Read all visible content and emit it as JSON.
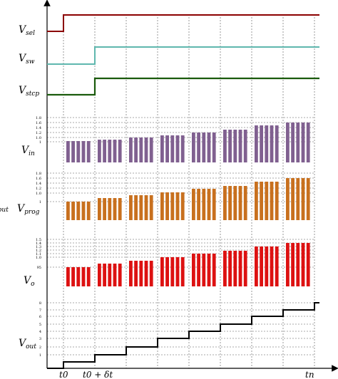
{
  "colors": {
    "v_sel": "#8b0000",
    "v_sw": "#5fb7ae",
    "v_stcp": "#1a5a0c",
    "v_in": "#806090",
    "v_prog": "#c8701e",
    "v_o": "#dd1111",
    "v_out": "#000000",
    "grid": "#555555"
  },
  "signals": {
    "v_sel": {
      "base": "V",
      "sub": "sel"
    },
    "v_sw": {
      "base": "V",
      "sub": "sw"
    },
    "v_stcp": {
      "base": "V",
      "sub": "stcp"
    },
    "v_in": {
      "base": "V",
      "sub": "in"
    },
    "v_prog": {
      "base": "V",
      "sub": "prog"
    },
    "v_o": {
      "base": "V",
      "sub": "o"
    },
    "v_out": {
      "base": "V",
      "sub": "out"
    },
    "cut_label": "out"
  },
  "time_labels": {
    "t0": "t0",
    "t0_dt": "t0 + δt",
    "tn": "tn"
  },
  "ticks": {
    "v_in": [
      "1.8",
      "1.6",
      "1.4",
      "1.2",
      "1.0",
      "1"
    ],
    "v_prog": [
      "1.8",
      "1.6",
      "1.4",
      "1.2",
      "1.0",
      "1"
    ],
    "v_o": [
      "1.5",
      "1.4",
      "1.3",
      "1.2",
      "1.1",
      "1.0",
      "95"
    ],
    "v_out": [
      "8",
      "7",
      "6",
      "5",
      "4",
      "3",
      "2",
      "1"
    ]
  },
  "steps": [
    0,
    1,
    2,
    3,
    4,
    5,
    6,
    7,
    8
  ]
}
